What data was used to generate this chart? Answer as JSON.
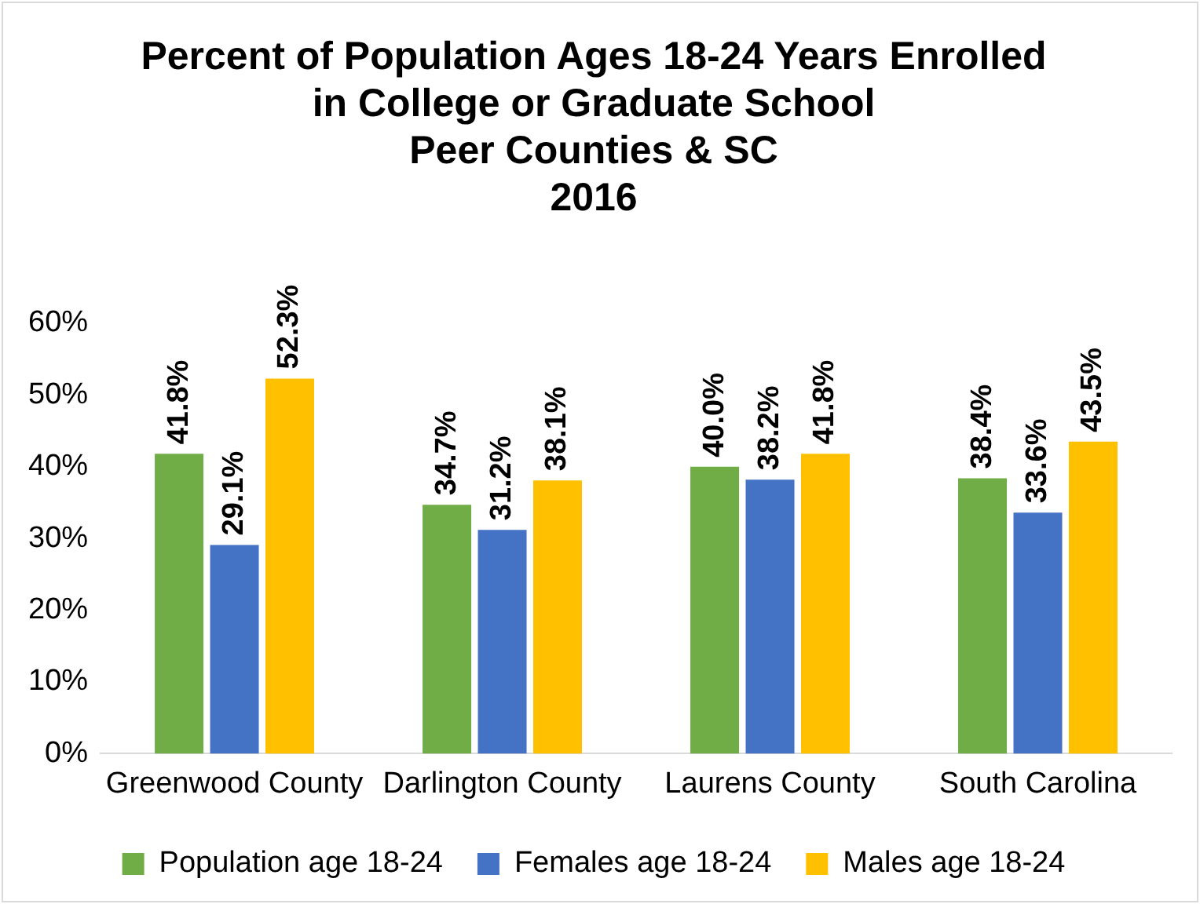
{
  "chart_data": {
    "type": "bar",
    "title": "Percent of Population Ages 18-24 Years Enrolled\nin College or Graduate School",
    "subtitle": "Peer Counties & SC\n2016",
    "categories": [
      "Greenwood County",
      "Darlington County",
      "Laurens County",
      "South Carolina"
    ],
    "series": [
      {
        "name": "Population age 18-24",
        "color": "#70ad47",
        "values": [
          41.8,
          34.7,
          40.0,
          38.4
        ],
        "value_labels": [
          "41.8%",
          "34.7%",
          "40.0%",
          "38.4%"
        ]
      },
      {
        "name": "Females age 18-24",
        "color": "#4472c4",
        "values": [
          29.1,
          31.2,
          38.2,
          33.6
        ],
        "value_labels": [
          "29.1%",
          "31.2%",
          "38.2%",
          "33.6%"
        ]
      },
      {
        "name": "Males age 18-24",
        "color": "#ffc000",
        "values": [
          52.3,
          38.1,
          41.8,
          43.5
        ],
        "value_labels": [
          "52.3%",
          "38.1%",
          "41.8%",
          "43.5%"
        ]
      }
    ],
    "ylim": [
      0,
      60
    ],
    "yticks": [
      {
        "value": 0,
        "label": "0%"
      },
      {
        "value": 10,
        "label": "10%"
      },
      {
        "value": 20,
        "label": "20%"
      },
      {
        "value": 30,
        "label": "30%"
      },
      {
        "value": 40,
        "label": "40%"
      },
      {
        "value": 50,
        "label": "50%"
      },
      {
        "value": 60,
        "label": "60%"
      }
    ],
    "grid": false,
    "legend": "bottom"
  }
}
